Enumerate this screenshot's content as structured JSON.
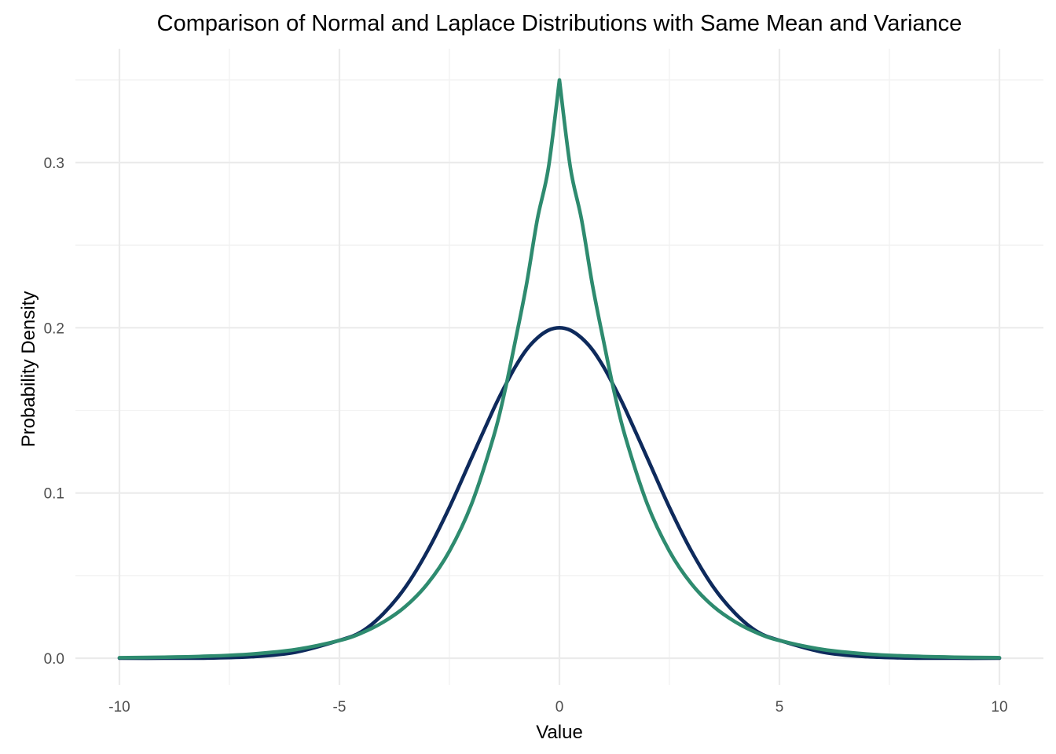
{
  "chart_data": {
    "type": "line",
    "title": "Comparison of Normal and Laplace Distributions with Same Mean and Variance",
    "xlabel": "Value",
    "ylabel": "Probability Density",
    "xlim": [
      -10,
      10
    ],
    "ylim": [
      0,
      0.35
    ],
    "x_ticks": [
      -10,
      -5,
      0,
      5,
      10
    ],
    "x_tick_labels": [
      "-10",
      "-5",
      "0",
      "5",
      "10"
    ],
    "y_ticks": [
      0.0,
      0.1,
      0.2,
      0.3
    ],
    "y_tick_labels": [
      "0.0",
      "0.1",
      "0.2",
      "0.3"
    ],
    "grid": true,
    "legend": "none",
    "x": [
      -10,
      -9,
      -8,
      -7,
      -6,
      -5,
      -4.5,
      -4,
      -3.5,
      -3,
      -2.5,
      -2,
      -1.5,
      -1.25,
      -1,
      -0.75,
      -0.5,
      -0.25,
      0,
      0.25,
      0.5,
      0.75,
      1,
      1.25,
      1.5,
      2,
      2.5,
      3,
      3.5,
      4,
      4.5,
      5,
      6,
      7,
      8,
      9,
      10
    ],
    "series": [
      {
        "color": "#0e2a5c",
        "values": [
          0.0,
          0.0,
          0.0001,
          0.0009,
          0.0036,
          0.0108,
          0.016,
          0.027,
          0.043,
          0.0648,
          0.0913,
          0.121,
          0.1506,
          0.1641,
          0.1765,
          0.1867,
          0.1939,
          0.1985,
          0.2,
          0.1985,
          0.1939,
          0.1867,
          0.1765,
          0.1641,
          0.1506,
          0.121,
          0.0913,
          0.0648,
          0.043,
          0.027,
          0.016,
          0.0108,
          0.0036,
          0.0009,
          0.0001,
          0.0,
          0.0
        ]
      },
      {
        "color": "#2e8b6f",
        "values": [
          0.0003,
          0.0006,
          0.0012,
          0.0025,
          0.0052,
          0.0107,
          0.0152,
          0.0219,
          0.0313,
          0.045,
          0.0648,
          0.0931,
          0.1338,
          0.1605,
          0.1924,
          0.226,
          0.2659,
          0.2968,
          0.35,
          0.2968,
          0.2659,
          0.226,
          0.1924,
          0.1605,
          0.1338,
          0.0931,
          0.0648,
          0.045,
          0.0313,
          0.0219,
          0.0152,
          0.0107,
          0.0052,
          0.0025,
          0.0012,
          0.0006,
          0.0003
        ]
      }
    ]
  }
}
